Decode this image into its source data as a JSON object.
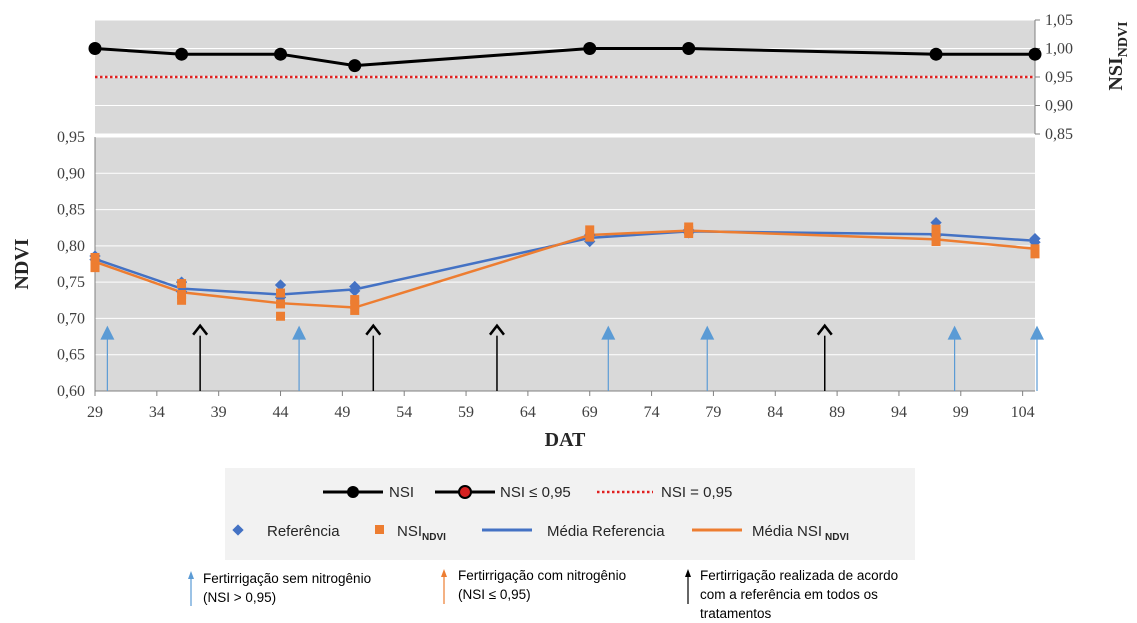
{
  "chart_data": [
    {
      "type": "line",
      "ylabel": "NSI",
      "ylabel_sub": "NDVI",
      "ylim": [
        0.85,
        1.05
      ],
      "yticks": [
        "1,05",
        "1,00",
        "0,95",
        "0,90",
        "0,85"
      ],
      "series": [
        {
          "name": "NSI",
          "x": [
            29,
            36,
            44,
            50,
            69,
            77,
            97,
            105
          ],
          "y": [
            1.0,
            0.99,
            0.99,
            0.97,
            1.0,
            1.0,
            0.99,
            0.99
          ],
          "color": "#000000"
        }
      ],
      "threshold": {
        "name": "NSI = 0,95",
        "y": 0.95,
        "color": "#e02020"
      }
    },
    {
      "type": "scatter+line",
      "xlabel": "DAT",
      "ylabel": "NDVI",
      "ylim": [
        0.6,
        0.95
      ],
      "xlim": [
        29,
        105
      ],
      "xticks": [
        "29",
        "34",
        "39",
        "44",
        "49",
        "54",
        "59",
        "64",
        "69",
        "74",
        "79",
        "84",
        "89",
        "94",
        "99",
        "104"
      ],
      "yticks": [
        "0,95",
        "0,90",
        "0,85",
        "0,80",
        "0,75",
        "0,70",
        "0,65",
        "0,60"
      ],
      "series": [
        {
          "name": "Referência",
          "kind": "points",
          "color": "#4472c4",
          "x": [
            29,
            29,
            36,
            36,
            44,
            44,
            50,
            50,
            69,
            69,
            77,
            77,
            97,
            97,
            105,
            105
          ],
          "y": [
            0.786,
            0.781,
            0.75,
            0.737,
            0.746,
            0.729,
            0.744,
            0.738,
            0.806,
            0.815,
            0.822,
            0.818,
            0.832,
            0.814,
            0.81,
            0.805
          ]
        },
        {
          "name": "NSI NDVI",
          "kind": "points",
          "color": "#ed7d31",
          "x": [
            29,
            29,
            29,
            36,
            36,
            36,
            44,
            44,
            44,
            50,
            50,
            50,
            69,
            69,
            77,
            77,
            77,
            97,
            97,
            97,
            105,
            105
          ],
          "y": [
            0.784,
            0.776,
            0.77,
            0.748,
            0.733,
            0.725,
            0.735,
            0.72,
            0.703,
            0.726,
            0.719,
            0.711,
            0.822,
            0.812,
            0.826,
            0.821,
            0.817,
            0.823,
            0.815,
            0.806,
            0.796,
            0.789
          ]
        },
        {
          "name": "Média Referencia",
          "kind": "line",
          "color": "#4472c4",
          "x": [
            29,
            36,
            44,
            50,
            69,
            77,
            97,
            105
          ],
          "y": [
            0.782,
            0.741,
            0.733,
            0.74,
            0.811,
            0.82,
            0.816,
            0.807
          ]
        },
        {
          "name": "Média NSI NDVI",
          "kind": "line",
          "color": "#ed7d31",
          "x": [
            29,
            36,
            44,
            50,
            69,
            77,
            97,
            105
          ],
          "y": [
            0.778,
            0.736,
            0.721,
            0.715,
            0.815,
            0.821,
            0.809,
            0.796
          ]
        }
      ],
      "fertigation_events": [
        {
          "type": "sem_nitrogenio",
          "dat": 30,
          "color": "#5b9bd5"
        },
        {
          "type": "referencia",
          "dat": 37.5,
          "color": "#000000"
        },
        {
          "type": "sem_nitrogenio",
          "dat": 45.5,
          "color": "#5b9bd5"
        },
        {
          "type": "referencia",
          "dat": 51.5,
          "color": "#000000"
        },
        {
          "type": "referencia",
          "dat": 61.5,
          "color": "#000000"
        },
        {
          "type": "sem_nitrogenio",
          "dat": 70.5,
          "color": "#5b9bd5"
        },
        {
          "type": "sem_nitrogenio",
          "dat": 78.5,
          "color": "#5b9bd5"
        },
        {
          "type": "referencia",
          "dat": 88,
          "color": "#000000"
        },
        {
          "type": "sem_nitrogenio",
          "dat": 98.5,
          "color": "#5b9bd5"
        },
        {
          "type": "sem_nitrogenio",
          "dat": 106.5,
          "color": "#5b9bd5"
        }
      ]
    }
  ],
  "legend": {
    "nsi": "NSI",
    "nsi_low": "NSI ≤ 0,95",
    "nsi_threshold": "NSI = 0,95",
    "referencia": "Referência",
    "nsi_ndvi": "NSI",
    "nsi_ndvi_sub": "NDVI",
    "media_referencia": "Média Referencia",
    "media_nsi_ndvi": "Média NSI",
    "media_nsi_ndvi_sub": "NDVI"
  },
  "notes": {
    "sem_n_line1": "Fertirrigação sem nitrogênio",
    "sem_n_line2": "(NSI > 0,95)",
    "com_n_line1": "Fertirrigação com nitrogênio",
    "com_n_line2": "(NSI ≤ 0,95)",
    "ref_line1": "Fertirrigação realizada de acordo",
    "ref_line2": "com a referência em todos os",
    "ref_line3": "tratamentos",
    "colors": {
      "sem_n": "#5b9bd5",
      "com_n": "#ed7d31",
      "ref": "#000000"
    }
  }
}
